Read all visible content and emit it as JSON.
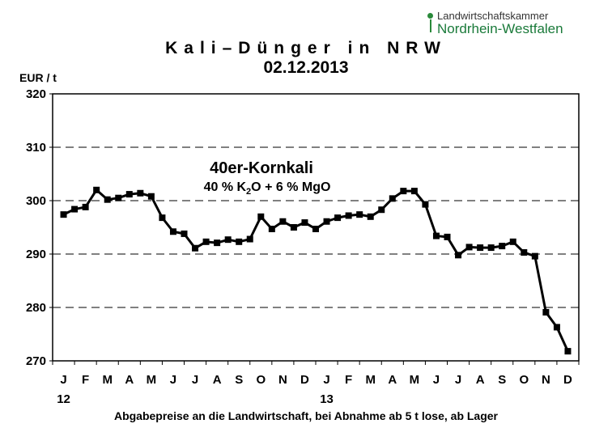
{
  "logo": {
    "line1": "Landwirtschaftskammer",
    "line2": "Nordrhein-Westfalen",
    "color": "#1a7a3a"
  },
  "chart_data": {
    "type": "line",
    "title": "Kali–Dünger in NRW",
    "subtitle": "02.12.2013",
    "ylabel": "EUR / t",
    "xlabel": "Abgabepreise an die Landwirtschaft, bei Abnahme ab 5 t lose, ab Lager",
    "ylim": [
      270,
      320
    ],
    "yticks": [
      270,
      280,
      290,
      300,
      310,
      320
    ],
    "grid": "horizontal-dashed",
    "months": [
      "J",
      "F",
      "M",
      "A",
      "M",
      "J",
      "J",
      "A",
      "S",
      "O",
      "N",
      "D",
      "J",
      "F",
      "M",
      "A",
      "M",
      "J",
      "J",
      "A",
      "S",
      "O",
      "N",
      "D"
    ],
    "year_labels": [
      {
        "month_index": 0,
        "label": "12"
      },
      {
        "month_index": 12,
        "label": "13"
      }
    ],
    "annotation": {
      "line1": "40er-Kornkali",
      "line2_prefix": "40 %  K",
      "line2_sub": "2",
      "line2_suffix": "O + 6 % MgO"
    },
    "series": [
      {
        "line_color": "#000000",
        "points": [
          [
            0.0,
            297.4
          ],
          [
            0.5,
            298.4
          ],
          [
            1.0,
            298.8
          ],
          [
            1.5,
            302.0
          ],
          [
            2.0,
            300.2
          ],
          [
            2.5,
            300.5
          ],
          [
            3.0,
            301.2
          ],
          [
            3.5,
            301.4
          ],
          [
            4.0,
            300.8
          ],
          [
            4.5,
            296.8
          ],
          [
            5.0,
            294.2
          ],
          [
            5.5,
            293.8
          ],
          [
            6.0,
            291.1
          ],
          [
            6.5,
            292.3
          ],
          [
            7.0,
            292.1
          ],
          [
            7.5,
            292.7
          ],
          [
            8.0,
            292.3
          ],
          [
            8.5,
            292.8
          ],
          [
            9.0,
            297.0
          ],
          [
            9.5,
            294.7
          ],
          [
            10.0,
            296.1
          ],
          [
            10.5,
            295.0
          ],
          [
            11.0,
            295.9
          ],
          [
            11.5,
            294.7
          ],
          [
            12.0,
            296.1
          ],
          [
            12.5,
            296.8
          ],
          [
            13.0,
            297.2
          ],
          [
            13.5,
            297.4
          ],
          [
            14.0,
            297.0
          ],
          [
            14.5,
            298.3
          ],
          [
            15.0,
            300.4
          ],
          [
            15.5,
            301.8
          ],
          [
            16.0,
            301.8
          ],
          [
            16.5,
            299.3
          ],
          [
            17.0,
            293.4
          ],
          [
            17.5,
            293.2
          ],
          [
            18.0,
            289.8
          ],
          [
            18.5,
            291.3
          ],
          [
            19.0,
            291.2
          ],
          [
            19.5,
            291.2
          ],
          [
            20.0,
            291.5
          ],
          [
            20.5,
            292.3
          ],
          [
            21.0,
            290.3
          ],
          [
            21.5,
            289.6
          ],
          [
            22.0,
            279.1
          ],
          [
            22.5,
            276.3
          ],
          [
            23.0,
            271.8
          ]
        ]
      }
    ]
  }
}
